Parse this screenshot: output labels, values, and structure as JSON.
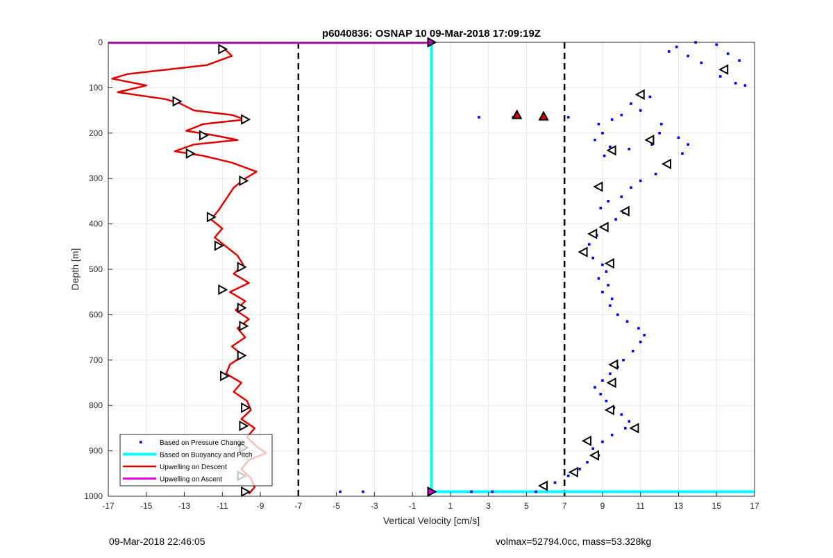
{
  "chart_data": {
    "type": "scatter",
    "title": "p6040836: OSNAP 10 09-Mar-2018 17:09:19Z",
    "xlabel": "Vertical Velocity [cm/s]",
    "ylabel": "Depth [m]",
    "xlim": [
      -17,
      17
    ],
    "ylim": [
      0,
      1000
    ],
    "y_reversed": true,
    "grid": true,
    "legend_position": "bottom-left",
    "x_ticks": [
      -17,
      -15,
      -13,
      -11,
      -9,
      -7,
      -5,
      -3,
      -1,
      1,
      3,
      5,
      7,
      9,
      11,
      13,
      15,
      17
    ],
    "y_ticks": [
      0,
      100,
      200,
      300,
      400,
      500,
      600,
      700,
      800,
      900,
      1000
    ],
    "colors": {
      "pressure": "#0000ee",
      "buoyancy": "#00ffff",
      "descent": "#dd0000",
      "ascent": "#e000e0",
      "threshold": "#000000"
    },
    "thresholds": [
      -7,
      7
    ],
    "series": [
      {
        "name": "Based on Pressure Change",
        "style": "dots",
        "points": [
          [
            13.9,
            0
          ],
          [
            15.0,
            5
          ],
          [
            15.6,
            25
          ],
          [
            16.2,
            40
          ],
          [
            15.5,
            60
          ],
          [
            15.2,
            75
          ],
          [
            16.0,
            90
          ],
          [
            16.5,
            95
          ],
          [
            12.9,
            10
          ],
          [
            12.5,
            20
          ],
          [
            13.5,
            30
          ],
          [
            14.2,
            45
          ],
          [
            11.5,
            120
          ],
          [
            10.5,
            135
          ],
          [
            11.0,
            150
          ],
          [
            10.0,
            160
          ],
          [
            9.5,
            170
          ],
          [
            8.8,
            180
          ],
          [
            9.0,
            200
          ],
          [
            8.6,
            215
          ],
          [
            9.4,
            230
          ],
          [
            9.1,
            250
          ],
          [
            10.4,
            235
          ],
          [
            11.6,
            225
          ],
          [
            12.1,
            180
          ],
          [
            12.0,
            200
          ],
          [
            13.0,
            210
          ],
          [
            13.5,
            225
          ],
          [
            13.2,
            245
          ],
          [
            12.4,
            270
          ],
          [
            11.8,
            290
          ],
          [
            11.0,
            305
          ],
          [
            10.5,
            320
          ],
          [
            10.0,
            340
          ],
          [
            9.3,
            350
          ],
          [
            8.9,
            365
          ],
          [
            10.1,
            375
          ],
          [
            9.7,
            390
          ],
          [
            9.2,
            410
          ],
          [
            8.7,
            425
          ],
          [
            8.3,
            445
          ],
          [
            8.0,
            460
          ],
          [
            8.5,
            475
          ],
          [
            9.0,
            490
          ],
          [
            9.2,
            505
          ],
          [
            8.8,
            520
          ],
          [
            9.3,
            535
          ],
          [
            9.0,
            550
          ],
          [
            9.5,
            565
          ],
          [
            9.4,
            580
          ],
          [
            9.8,
            600
          ],
          [
            10.3,
            615
          ],
          [
            10.9,
            630
          ],
          [
            11.2,
            645
          ],
          [
            11.0,
            660
          ],
          [
            10.6,
            680
          ],
          [
            10.1,
            700
          ],
          [
            9.8,
            715
          ],
          [
            9.4,
            730
          ],
          [
            9.0,
            745
          ],
          [
            8.6,
            760
          ],
          [
            8.9,
            775
          ],
          [
            9.2,
            790
          ],
          [
            9.6,
            805
          ],
          [
            10.0,
            820
          ],
          [
            10.4,
            835
          ],
          [
            10.2,
            850
          ],
          [
            9.5,
            865
          ],
          [
            9.0,
            880
          ],
          [
            8.5,
            895
          ],
          [
            8.8,
            910
          ],
          [
            8.2,
            925
          ],
          [
            7.8,
            940
          ],
          [
            7.2,
            955
          ],
          [
            6.5,
            970
          ],
          [
            6.0,
            980
          ],
          [
            5.5,
            990
          ],
          [
            2.5,
            165
          ],
          [
            4.3,
            165
          ],
          [
            6.0,
            165
          ],
          [
            7.2,
            165
          ],
          [
            2.1,
            990
          ],
          [
            3.2,
            990
          ],
          [
            -3.6,
            990
          ],
          [
            -4.8,
            990
          ]
        ]
      },
      {
        "name": "Based on Buoyancy and Pitch",
        "style": "line",
        "points": [
          [
            0,
            0
          ],
          [
            0,
            990
          ],
          [
            17,
            990
          ]
        ]
      },
      {
        "name": "Upwelling on Descent",
        "style": "line",
        "points": [
          [
            -11.0,
            10
          ],
          [
            -10.5,
            30
          ],
          [
            -11.8,
            50
          ],
          [
            -16.0,
            70
          ],
          [
            -16.8,
            80
          ],
          [
            -15.0,
            95
          ],
          [
            -16.5,
            110
          ],
          [
            -14.0,
            125
          ],
          [
            -13.2,
            135
          ],
          [
            -12.5,
            150
          ],
          [
            -10.5,
            160
          ],
          [
            -9.8,
            170
          ],
          [
            -12.0,
            180
          ],
          [
            -12.9,
            195
          ],
          [
            -11.4,
            205
          ],
          [
            -10.2,
            215
          ],
          [
            -12.5,
            225
          ],
          [
            -13.5,
            240
          ],
          [
            -12.0,
            250
          ],
          [
            -10.5,
            265
          ],
          [
            -9.2,
            285
          ],
          [
            -9.8,
            300
          ],
          [
            -10.4,
            320
          ],
          [
            -10.8,
            345
          ],
          [
            -11.2,
            370
          ],
          [
            -11.6,
            390
          ],
          [
            -11.0,
            410
          ],
          [
            -11.4,
            430
          ],
          [
            -10.8,
            450
          ],
          [
            -10.2,
            470
          ],
          [
            -9.9,
            490
          ],
          [
            -10.4,
            510
          ],
          [
            -9.6,
            530
          ],
          [
            -10.6,
            550
          ],
          [
            -9.8,
            570
          ],
          [
            -10.3,
            590
          ],
          [
            -9.6,
            610
          ],
          [
            -10.2,
            630
          ],
          [
            -9.8,
            650
          ],
          [
            -10.5,
            670
          ],
          [
            -9.9,
            690
          ],
          [
            -10.6,
            710
          ],
          [
            -10.8,
            730
          ],
          [
            -10.0,
            750
          ],
          [
            -10.4,
            770
          ],
          [
            -9.7,
            790
          ],
          [
            -9.5,
            810
          ],
          [
            -10.0,
            830
          ],
          [
            -9.3,
            850
          ],
          [
            -9.7,
            870
          ],
          [
            -9.2,
            890
          ],
          [
            -8.7,
            905
          ],
          [
            -9.6,
            920
          ],
          [
            -10.0,
            940
          ],
          [
            -9.5,
            960
          ],
          [
            -9.3,
            980
          ],
          [
            -9.6,
            995
          ]
        ]
      },
      {
        "name": "Upwelling on Ascent",
        "style": "line",
        "points": [
          [
            -17,
            1
          ],
          [
            0,
            1
          ],
          [
            0,
            5
          ]
        ]
      }
    ],
    "markers": {
      "descent": [
        [
          -11.0,
          15
        ],
        [
          -13.4,
          130
        ],
        [
          -9.8,
          170
        ],
        [
          -12.0,
          205
        ],
        [
          -12.7,
          245
        ],
        [
          -9.9,
          305
        ],
        [
          -11.6,
          385
        ],
        [
          -11.2,
          448
        ],
        [
          -10.0,
          495
        ],
        [
          -11.0,
          545
        ],
        [
          -10.0,
          585
        ],
        [
          -9.9,
          625
        ],
        [
          -10.0,
          690
        ],
        [
          -10.9,
          735
        ],
        [
          -9.8,
          805
        ],
        [
          -9.9,
          845
        ],
        [
          -9.9,
          893
        ],
        [
          -10.0,
          955
        ],
        [
          -9.8,
          990
        ],
        [
          0,
          0
        ],
        [
          0,
          990
        ]
      ],
      "ascent": [
        [
          15.4,
          60
        ],
        [
          11.0,
          115
        ],
        [
          11.5,
          215
        ],
        [
          9.5,
          238
        ],
        [
          12.4,
          268
        ],
        [
          8.8,
          318
        ],
        [
          10.2,
          372
        ],
        [
          9.1,
          407
        ],
        [
          8.5,
          422
        ],
        [
          8.0,
          462
        ],
        [
          9.4,
          487
        ],
        [
          9.6,
          710
        ],
        [
          9.5,
          750
        ],
        [
          9.4,
          810
        ],
        [
          10.7,
          850
        ],
        [
          8.2,
          878
        ],
        [
          8.6,
          910
        ],
        [
          7.5,
          947
        ],
        [
          5.9,
          977
        ]
      ],
      "red_up": [
        [
          4.5,
          160
        ],
        [
          5.9,
          163
        ]
      ]
    }
  },
  "footer": {
    "left": "09-Mar-2018 22:46:05",
    "right": "volmax=52794.0cc, mass=53.328kg"
  }
}
